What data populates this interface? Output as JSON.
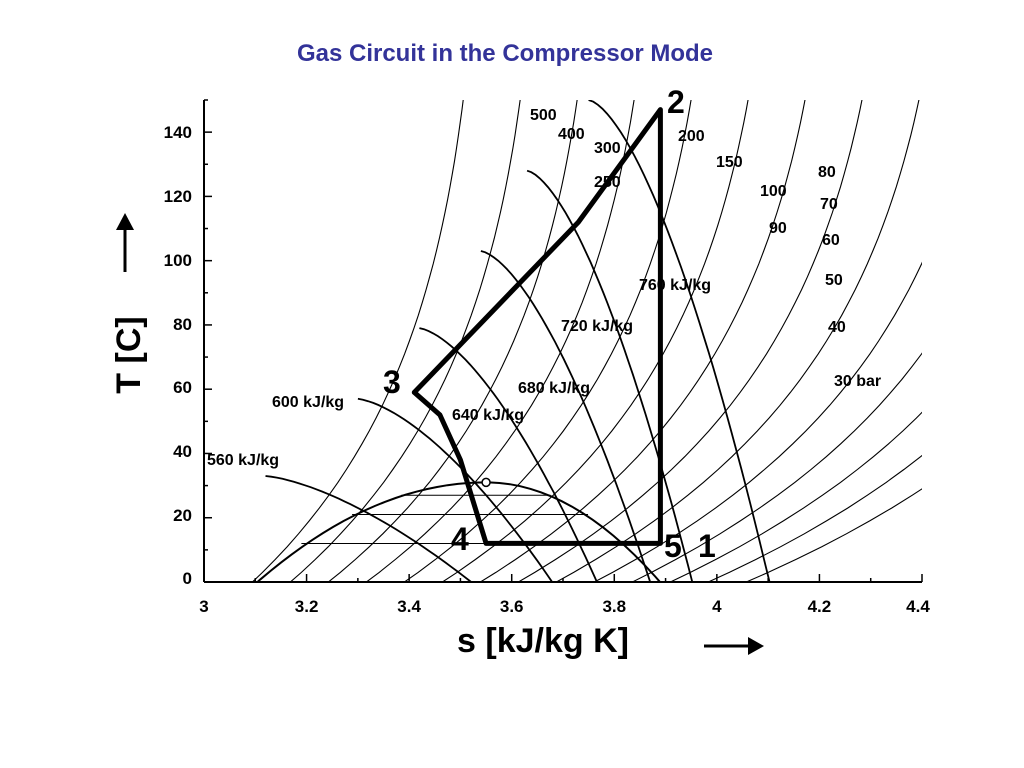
{
  "page_title": "Gas Circuit in the Compressor Mode",
  "colors": {
    "title": "#333399",
    "ink": "#000000",
    "background": "#ffffff"
  },
  "chart_data": {
    "type": "line",
    "title": "",
    "xlabel": "s [kJ/kg K]",
    "ylabel": "T  [C]",
    "xlim": [
      3.0,
      4.4
    ],
    "ylim": [
      0,
      150
    ],
    "x_ticks": [
      "3",
      "3.2",
      "3.4",
      "3.6",
      "3.8",
      "4",
      "4.2",
      "4.4"
    ],
    "y_ticks": [
      "0",
      "20",
      "40",
      "60",
      "80",
      "100",
      "120",
      "140"
    ],
    "grid": false,
    "axis_arrows": {
      "x": "right-arrow-icon",
      "y": "up-arrow-icon"
    },
    "cycle": {
      "name": "compressor-mode cycle",
      "points": [
        {
          "label": "2",
          "s": 3.89,
          "T": 147
        },
        {
          "label": "",
          "s": 3.73,
          "T": 112
        },
        {
          "label": "3",
          "s": 3.41,
          "T": 59
        },
        {
          "label": "",
          "s": 3.46,
          "T": 52
        },
        {
          "label": "",
          "s": 3.5,
          "T": 38
        },
        {
          "label": "4",
          "s": 3.55,
          "T": 12
        },
        {
          "label": "5",
          "s": 3.89,
          "T": 12
        }
      ],
      "extra_labels": [
        "1"
      ],
      "marker": {
        "s": 3.55,
        "T": 31
      }
    },
    "isobar_labels": [
      "500",
      "400",
      "300",
      "250",
      "200",
      "150",
      "100",
      "90",
      "80",
      "70",
      "60",
      "50",
      "40",
      "30 bar"
    ],
    "isenthalp_labels": [
      "560 kJ/kg",
      "600 kJ/kg",
      "640 kJ/kg",
      "680 kJ/kg",
      "720 kJ/kg",
      "760 kJ/kg"
    ],
    "saturation_dome": {
      "peak_s": 3.55,
      "peak_T": 31,
      "left_s": 3.09,
      "right_s": 3.9
    }
  }
}
